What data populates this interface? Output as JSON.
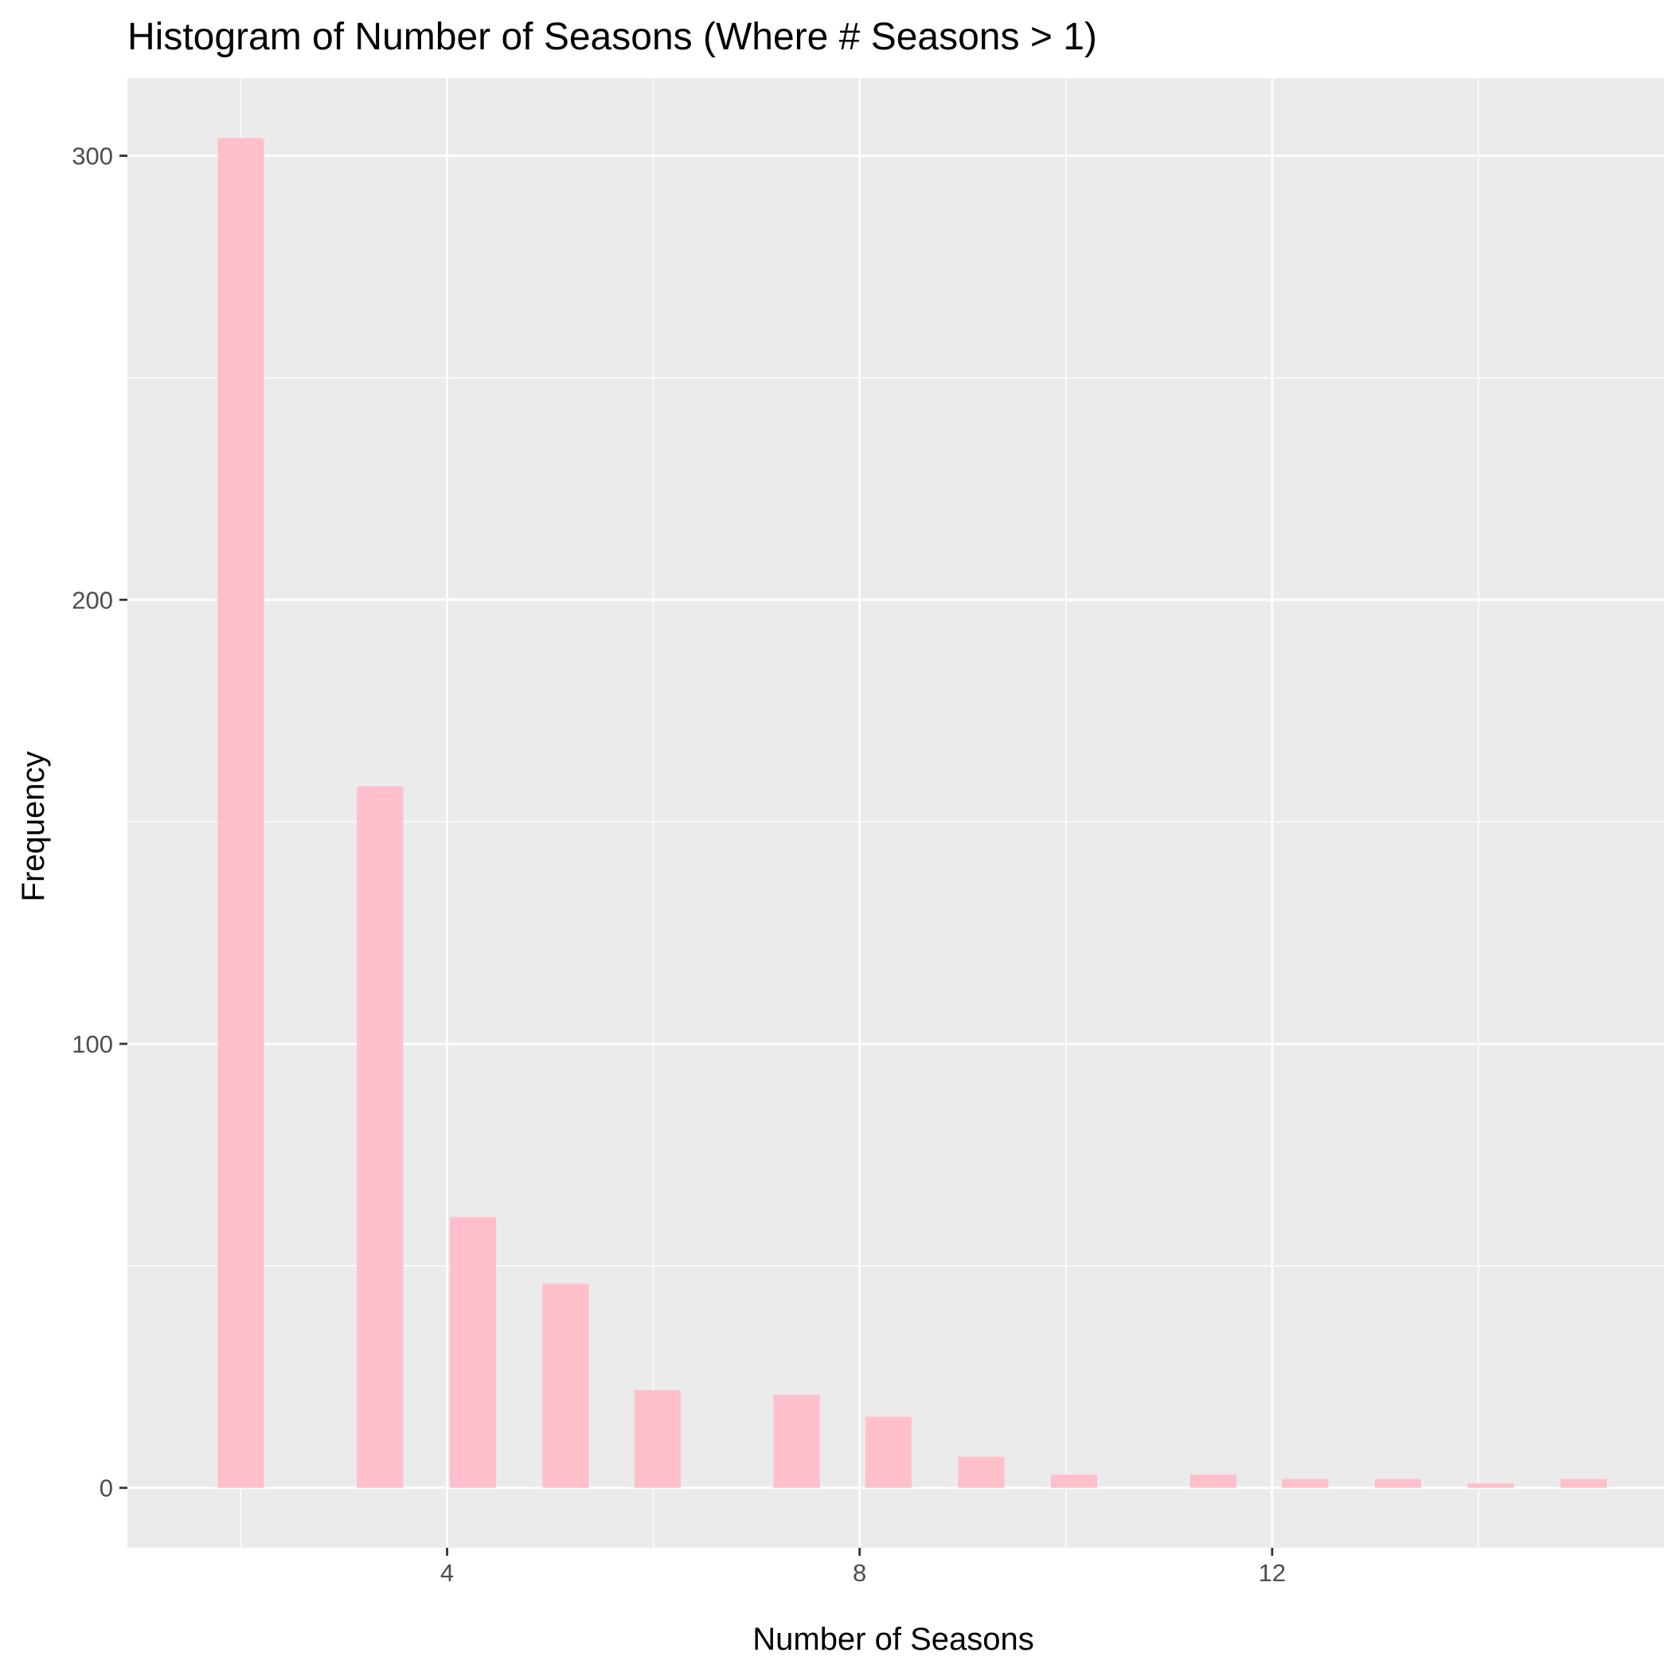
{
  "chart_data": {
    "type": "bar",
    "title": "Histogram of Number of Seasons (Where # Seasons > 1)",
    "xlabel": "Number of Seasons",
    "ylabel": "Frequency",
    "bin_centers": [
      2,
      3.35,
      4.25,
      5.15,
      6.04,
      7.39,
      8.28,
      9.18,
      10.08,
      11.43,
      12.32,
      13.22,
      14.12,
      15.02
    ],
    "bin_width": 0.45,
    "values": [
      304,
      158,
      61,
      46,
      22,
      21,
      16,
      7,
      3,
      3,
      2,
      2,
      1,
      2
    ],
    "xlim": [
      0.9,
      15.8
    ],
    "ylim": [
      -13.5,
      317.5
    ],
    "x_ticks": [
      4,
      8,
      12
    ],
    "x_tick_labels": [
      "4",
      "8",
      "12"
    ],
    "y_ticks": [
      0,
      100,
      200,
      300
    ],
    "y_tick_labels": [
      "0",
      "100",
      "200",
      "300"
    ],
    "grid": true,
    "colors": {
      "bar_fill": "#FFC0CB",
      "panel_background": "#EBEBEB",
      "grid_line": "#FFFFFF",
      "tick_mark": "#333333"
    }
  }
}
